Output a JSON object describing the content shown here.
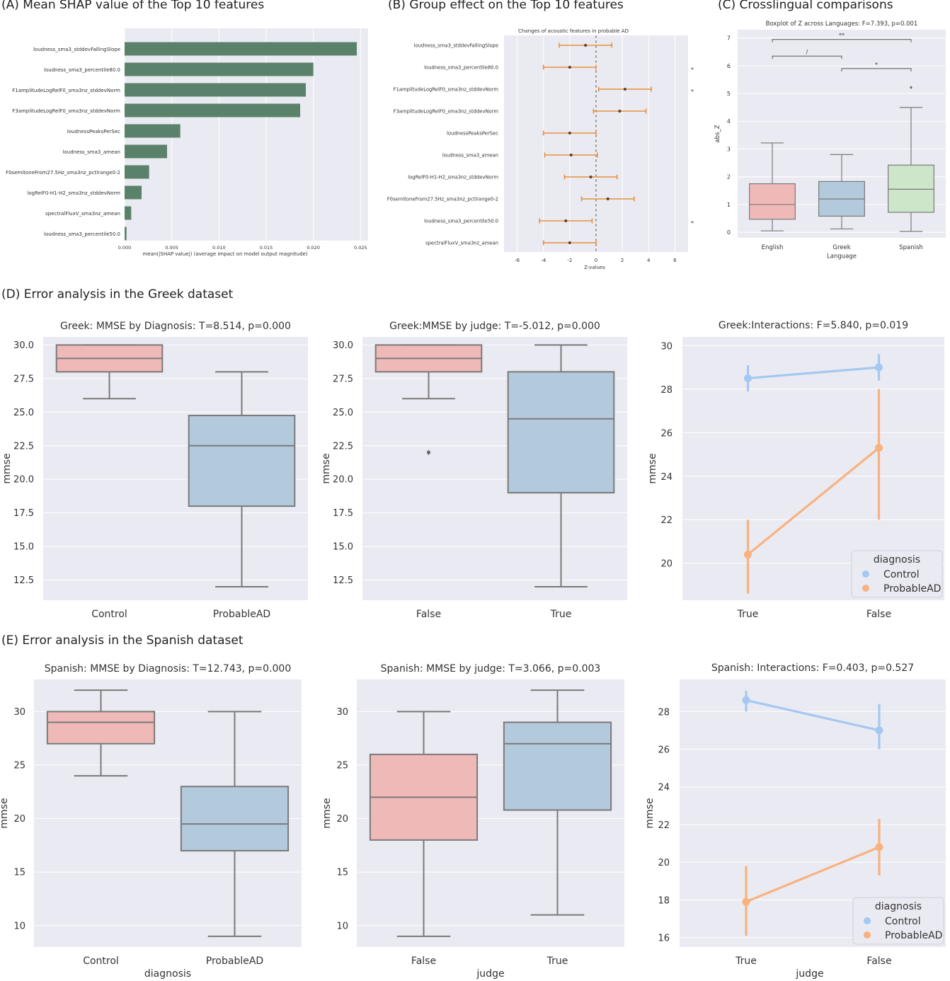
{
  "section_titles": {
    "a": "(A) Mean SHAP value of the Top 10 features",
    "b": "(B) Group effect on the Top 10 features",
    "c": "(C) Crosslingual comparisons",
    "d": "(D) Error analysis in the Greek dataset",
    "e": "(E) Error analysis in the Spanish dataset"
  },
  "colors": {
    "panel_bg": "#eaeaf2",
    "grid": "#ffffff",
    "shap_bar": "#5a8169",
    "error_bar": "#e8913a",
    "box_pink": "#efb9b7",
    "box_blue": "#b3c9dc",
    "box_green": "#cde6c9",
    "box_line": "#7a7a7a",
    "line_control": "#a3c8f2",
    "line_probablead": "#f8b27f"
  },
  "chart_data": [
    {
      "id": "A",
      "type": "bar",
      "orientation": "horizontal",
      "title": "",
      "categories": [
        "loudness_sma3_stddevFallingSlope",
        "loudness_sma3_percentile80.0",
        "F1amplitudeLogRelF0_sma3nz_stddevNorm",
        "F3amplitudeLogRelF0_sma3nz_stddevNorm",
        "loudnessPeaksPerSec",
        "loudness_sma3_amean",
        "F0semitoneFrom27.5Hz_sma3nz_pctlrange0-2",
        "logRelF0-H1-H2_sma3nz_stddevNorm",
        "spectralFluxV_sma3nz_amean",
        "loudness_sma3_percentile50.0"
      ],
      "values": [
        0.0246,
        0.02,
        0.0192,
        0.0186,
        0.0059,
        0.0045,
        0.0026,
        0.0018,
        0.0007,
        0.0002
      ],
      "xlim": [
        0,
        0.0258
      ],
      "xticks": [
        "0.000",
        "0.005",
        "0.010",
        "0.015",
        "0.020",
        "0.025"
      ],
      "xtick_values": [
        0,
        0.005,
        0.01,
        0.015,
        0.02,
        0.025
      ],
      "xlabel": "mean(|SHAP value|) (average impact on model output magnitude)",
      "ylabel": ""
    },
    {
      "id": "B",
      "type": "errorbar",
      "title": "Changes of acoustic features in probable AD",
      "categories": [
        "loudness_sma3_stddevFallingSlope",
        "loudness_sma3_percentile80.0",
        "F1amplitudeLogRelF0_sma3nz_stddevNorm",
        "F3amplitudeLogRelF0_sma3nz_stddevNorm",
        "loudnessPeaksPerSec",
        "loudness_sma3_amean",
        "logRelF0-H1-H2_sma3nz_stddevNorm",
        "F0semitoneFrom27.5Hz_sma3nz_pctlrange0-2",
        "loudness_sma3_percentile50.0",
        "spectralFluxV_sma3nz_amean"
      ],
      "estimate": [
        -0.8,
        -2.0,
        2.2,
        1.8,
        -2.0,
        -1.9,
        -0.4,
        0.9,
        -2.3,
        -2.0
      ],
      "low": [
        -2.8,
        -4.0,
        0.2,
        -0.2,
        -4.0,
        -3.9,
        -2.4,
        -1.1,
        -4.3,
        -4.0
      ],
      "high": [
        1.2,
        0.0,
        4.2,
        3.8,
        0.0,
        0.1,
        1.6,
        2.9,
        -0.3,
        0.0
      ],
      "significance": [
        "",
        "*",
        "*",
        "",
        "",
        "",
        "",
        "",
        "*",
        ""
      ],
      "xlim": [
        -7,
        7
      ],
      "xticks": [
        "-6",
        "-4",
        "-2",
        "0",
        "2",
        "4",
        "6"
      ],
      "xtick_values": [
        -6,
        -4,
        -2,
        0,
        2,
        4,
        6
      ],
      "xlabel": "Z-values",
      "ylabel": ""
    },
    {
      "id": "C",
      "type": "box",
      "title": "Boxplot of Z across Languages: F=7.393, p=0.001",
      "categories": [
        "English",
        "Greek",
        "Spanish"
      ],
      "stats": [
        {
          "min": 0.05,
          "q1": 0.47,
          "median": 1.0,
          "q3": 1.75,
          "max": 3.22,
          "fliers": []
        },
        {
          "min": 0.12,
          "q1": 0.58,
          "median": 1.2,
          "q3": 1.83,
          "max": 2.8,
          "fliers": []
        },
        {
          "min": 0.03,
          "q1": 0.72,
          "median": 1.55,
          "q3": 2.42,
          "max": 4.5,
          "fliers": [
            5.22
          ]
        }
      ],
      "ylim": [
        -0.2,
        7.3
      ],
      "yticks": [
        "0",
        "1",
        "2",
        "3",
        "4",
        "5",
        "6",
        "7"
      ],
      "ytick_values": [
        0,
        1,
        2,
        3,
        4,
        5,
        6,
        7
      ],
      "xlabel": "Language",
      "ylabel": "abs_Z",
      "annotations": [
        {
          "from": 0,
          "to": 1,
          "y": 6.35,
          "label": "/"
        },
        {
          "from": 1,
          "to": 2,
          "y": 5.9,
          "label": "*"
        },
        {
          "from": 0,
          "to": 2,
          "y": 6.95,
          "label": "**"
        }
      ]
    },
    {
      "id": "D1",
      "type": "box",
      "title": "Greek: MMSE by Diagnosis: T=8.514, p=0.000",
      "categories": [
        "Control",
        "ProbableAD"
      ],
      "stats": [
        {
          "min": 26,
          "q1": 28,
          "median": 29,
          "q3": 30,
          "max": 30,
          "fliers": []
        },
        {
          "min": 12,
          "q1": 18,
          "median": 22.5,
          "q3": 24.75,
          "max": 28,
          "fliers": []
        }
      ],
      "ylim": [
        11.0,
        30.6
      ],
      "yticks": [
        "12.5",
        "15.0",
        "17.5",
        "20.0",
        "22.5",
        "25.0",
        "27.5",
        "30.0"
      ],
      "ytick_values": [
        12.5,
        15,
        17.5,
        20,
        22.5,
        25,
        27.5,
        30
      ],
      "xlabel": "",
      "ylabel": "mmse"
    },
    {
      "id": "D2",
      "type": "box",
      "title": "Greek:MMSE by judge: T=-5.012, p=0.000",
      "categories": [
        "False",
        "True"
      ],
      "stats": [
        {
          "min": 26,
          "q1": 28,
          "median": 29,
          "q3": 30,
          "max": 30,
          "fliers": [
            22
          ]
        },
        {
          "min": 12,
          "q1": 19,
          "median": 24.5,
          "q3": 28,
          "max": 30,
          "fliers": []
        }
      ],
      "ylim": [
        11.0,
        30.6
      ],
      "yticks": [
        "12.5",
        "15.0",
        "17.5",
        "20.0",
        "22.5",
        "25.0",
        "27.5",
        "30.0"
      ],
      "ytick_values": [
        12.5,
        15,
        17.5,
        20,
        22.5,
        25,
        27.5,
        30
      ],
      "xlabel": "",
      "ylabel": "mmse"
    },
    {
      "id": "D3",
      "type": "line",
      "title": "Greek:Interactions: F=5.840, p=0.019",
      "categories": [
        "True",
        "False"
      ],
      "series": [
        {
          "name": "Control",
          "values": [
            28.5,
            29.0
          ],
          "low": [
            27.9,
            28.4
          ],
          "high": [
            29.1,
            29.6
          ]
        },
        {
          "name": "ProbableAD",
          "values": [
            20.4,
            25.3
          ],
          "low": [
            18.6,
            22.0
          ],
          "high": [
            22.0,
            28.0
          ]
        }
      ],
      "ylim": [
        18.3,
        30.4
      ],
      "yticks": [
        "20",
        "22",
        "24",
        "26",
        "28",
        "30"
      ],
      "ytick_values": [
        20,
        22,
        24,
        26,
        28,
        30
      ],
      "xlabel": "",
      "ylabel": "mmse",
      "legend_title": "diagnosis",
      "legend_position": "lower-right"
    },
    {
      "id": "E1",
      "type": "box",
      "title": "Spanish: MMSE by Diagnosis: T=12.743, p=0.000",
      "categories": [
        "Control",
        "ProbableAD"
      ],
      "stats": [
        {
          "min": 24,
          "q1": 27,
          "median": 29,
          "q3": 30,
          "max": 32,
          "fliers": []
        },
        {
          "min": 9,
          "q1": 17,
          "median": 19.5,
          "q3": 23,
          "max": 30,
          "fliers": []
        }
      ],
      "ylim": [
        8.0,
        33.0
      ],
      "yticks": [
        "10",
        "15",
        "20",
        "25",
        "30"
      ],
      "ytick_values": [
        10,
        15,
        20,
        25,
        30
      ],
      "xlabel": "diagnosis",
      "ylabel": "mmse"
    },
    {
      "id": "E2",
      "type": "box",
      "title": "Spanish: MMSE by judge: T=3.066, p=0.003",
      "categories": [
        "False",
        "True"
      ],
      "stats": [
        {
          "min": 9,
          "q1": 18,
          "median": 22,
          "q3": 26,
          "max": 30,
          "fliers": []
        },
        {
          "min": 11,
          "q1": 20.8,
          "median": 27,
          "q3": 29,
          "max": 32,
          "fliers": []
        }
      ],
      "ylim": [
        8.0,
        33.0
      ],
      "yticks": [
        "10",
        "15",
        "20",
        "25",
        "30"
      ],
      "ytick_values": [
        10,
        15,
        20,
        25,
        30
      ],
      "xlabel": "judge",
      "ylabel": "mmse"
    },
    {
      "id": "E3",
      "type": "line",
      "title": "Spanish: Interactions: F=0.403, p=0.527",
      "categories": [
        "True",
        "False"
      ],
      "series": [
        {
          "name": "Control",
          "values": [
            28.6,
            27.0
          ],
          "low": [
            28.0,
            26.0
          ],
          "high": [
            29.1,
            28.4
          ]
        },
        {
          "name": "ProbableAD",
          "values": [
            17.9,
            20.8
          ],
          "low": [
            16.1,
            19.3
          ],
          "high": [
            19.8,
            22.3
          ]
        }
      ],
      "ylim": [
        15.5,
        29.7
      ],
      "yticks": [
        "16",
        "18",
        "20",
        "22",
        "24",
        "26",
        "28"
      ],
      "ytick_values": [
        16,
        18,
        20,
        22,
        24,
        26,
        28
      ],
      "xlabel": "judge",
      "ylabel": "mmse",
      "legend_title": "diagnosis",
      "legend_position": "lower-right"
    }
  ]
}
